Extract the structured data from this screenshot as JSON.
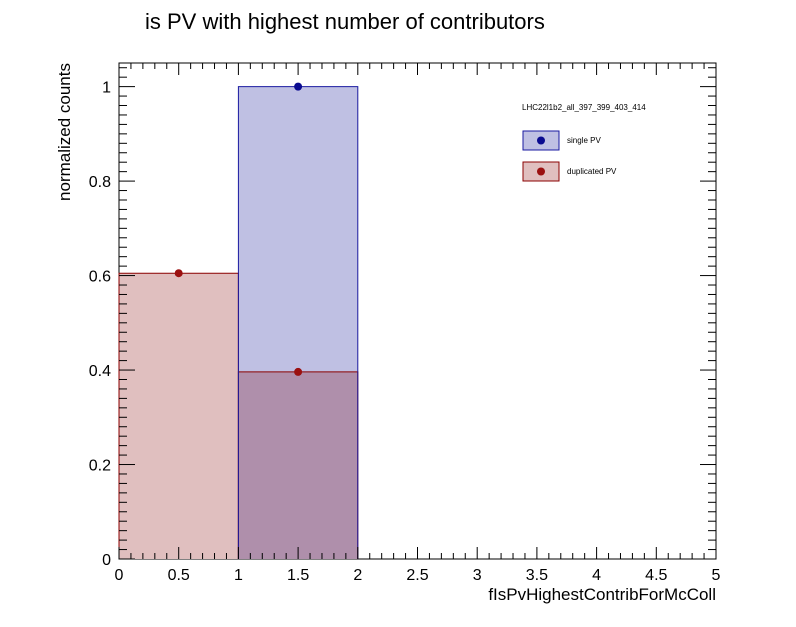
{
  "chart_data": {
    "type": "bar",
    "title": "is PV with highest number of contributors",
    "xlabel": "fIsPvHighestContribForMcColl",
    "ylabel": "normalized counts",
    "xlim": [
      0,
      5
    ],
    "ylim": [
      0,
      1.05
    ],
    "x_ticks": [
      "0",
      "0.5",
      "1",
      "1.5",
      "2",
      "2.5",
      "3",
      "3.5",
      "4",
      "4.5",
      "5"
    ],
    "y_ticks": [
      "0",
      "0.2",
      "0.4",
      "0.6",
      "0.8",
      "1"
    ],
    "legend_header": "LHC22l1b2_all_397_399_403_414",
    "legend_placement": "top-right",
    "grid": false,
    "bins": [
      [
        0,
        1
      ],
      [
        1,
        2
      ]
    ],
    "bin_centers": [
      0.5,
      1.5
    ],
    "series": [
      {
        "name": "duplicated PV",
        "values": [
          0.605,
          0.396
        ],
        "fill": "#e0bfbf",
        "line": "#8b0000",
        "marker": "#9b1010"
      },
      {
        "name": "single PV",
        "values": [
          0.0,
          1.0
        ],
        "fill": "#bfc0e3",
        "line": "#1a1aa0",
        "marker": "#0a0a90"
      }
    ],
    "overlap_fill": "#af8fab"
  }
}
